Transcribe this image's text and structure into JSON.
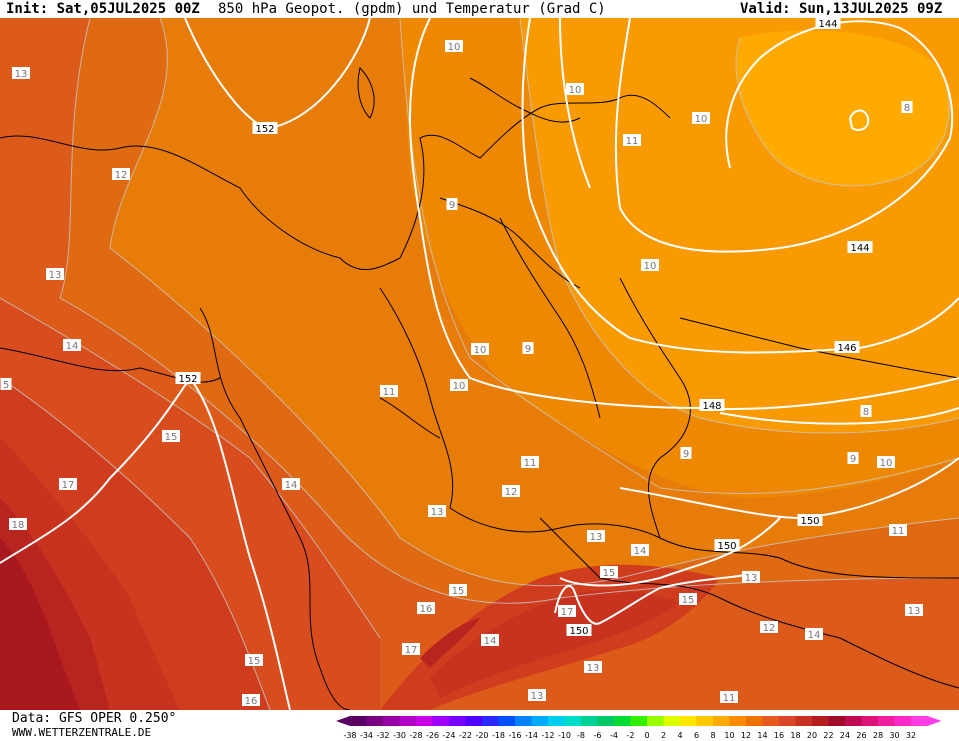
{
  "header": {
    "init_label": "Init: Sat,05JUL2025 00Z",
    "title": "850 hPa Geopot. (gpdm) und Temperatur (Grad C)",
    "valid_label": "Valid: Sun,13JUL2025 09Z"
  },
  "footer": {
    "data_source": "Data: GFS OPER 0.250°",
    "website": "WWW.WETTERZENTRALE.DE"
  },
  "legend": {
    "ticks": [
      "-38",
      "-34",
      "-32",
      "-30",
      "-28",
      "-26",
      "-24",
      "-22",
      "-20",
      "-18",
      "-16",
      "-14",
      "-12",
      "-10",
      "-8",
      "-6",
      "-4",
      "-2",
      "0",
      "2",
      "4",
      "6",
      "8",
      "10",
      "12",
      "14",
      "16",
      "18",
      "20",
      "22",
      "24",
      "26",
      "28",
      "30",
      "32"
    ],
    "colors": [
      "#5a0064",
      "#7a0082",
      "#9a00a8",
      "#b400c8",
      "#c800e6",
      "#a000ff",
      "#7800ff",
      "#5000ff",
      "#2828ff",
      "#0050ff",
      "#0082ff",
      "#00aaff",
      "#00cdf0",
      "#00dcc8",
      "#00d296",
      "#00c864",
      "#00dc32",
      "#32f000",
      "#96ff00",
      "#dcff00",
      "#ffe600",
      "#ffc800",
      "#ffaa00",
      "#ff8c00",
      "#f07000",
      "#e65a1e",
      "#dc4628",
      "#c8321e",
      "#b41e1e",
      "#a00a28",
      "#be0a50",
      "#dc1478",
      "#f01ea0",
      "#ff28c8",
      "#ff3ce6"
    ]
  },
  "map": {
    "field_colors": {
      "t8": "#ffaa00",
      "t9": "#f89a00",
      "t10": "#ee8800",
      "t11": "#e87c08",
      "t12": "#e06a12",
      "t13": "#dc5a1a",
      "t14": "#d84c1e",
      "t15": "#cf3c1e",
      "t16": "#c8321e",
      "t17": "#b8241e",
      "t18": "#a8181e"
    },
    "geopotential_labels": [
      "152",
      "152",
      "144",
      "144",
      "146",
      "148",
      "150",
      "150",
      "150"
    ],
    "temperature_labels": [
      "13",
      "12",
      "13",
      "14",
      "5",
      "17",
      "18",
      "15",
      "14",
      "15",
      "16",
      "10",
      "10",
      "11",
      "9",
      "10",
      "10",
      "10",
      "11",
      "11",
      "12",
      "13",
      "13",
      "9",
      "9",
      "8",
      "8",
      "9",
      "10",
      "11",
      "14",
      "15",
      "16",
      "15",
      "17",
      "15",
      "14",
      "13",
      "12",
      "13",
      "14",
      "13",
      "17",
      "13",
      "10",
      "11"
    ]
  }
}
